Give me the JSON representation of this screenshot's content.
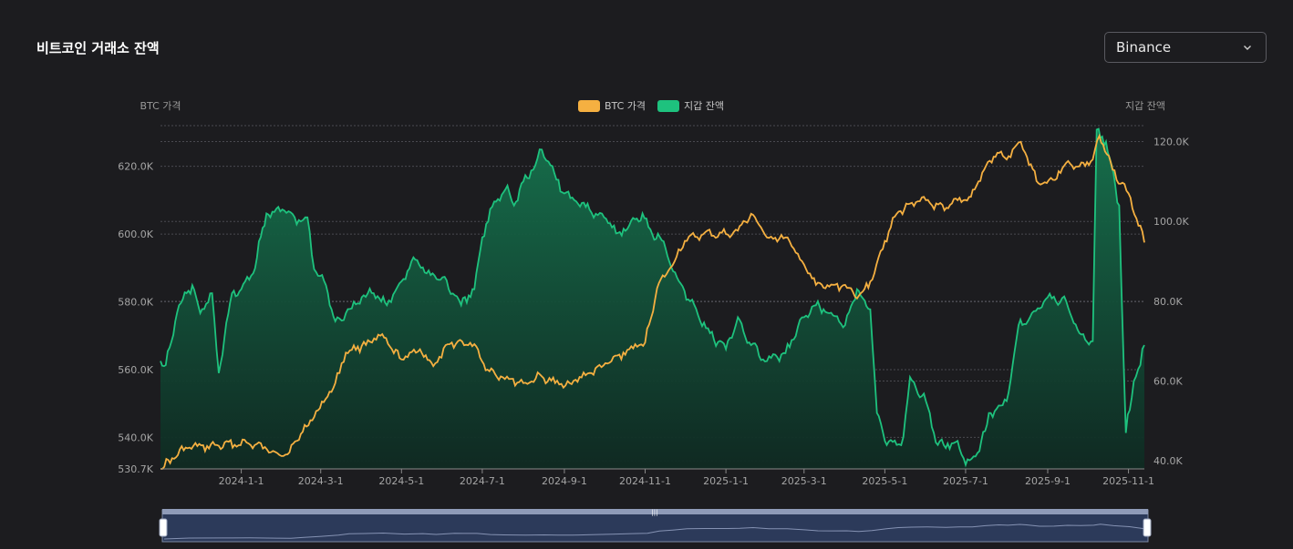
{
  "page": {
    "title": "비트코인 거래소 잔액"
  },
  "exchange_select": {
    "value": "Binance"
  },
  "colors": {
    "background": "#1c1c1f",
    "price_line": "#f5b041",
    "balance_line": "#1ec27e",
    "balance_fill_top": "#16734e",
    "balance_fill_bottom": "#0f2a22",
    "grid": "#4a4a50",
    "zoom_fill": "#2f3e5e"
  },
  "chart_data": {
    "type": "line",
    "left_axis_label": "BTC 가격",
    "right_axis_label": "지갑 잔액",
    "legend": [
      "BTC 가격",
      "지갑 잔액"
    ],
    "legend_position": "top-center",
    "grid": true,
    "x_range": [
      "2023-11-01",
      "2025-11-13"
    ],
    "x_ticks": [
      "2024-1-1",
      "2024-3-1",
      "2024-5-1",
      "2024-7-1",
      "2024-9-1",
      "2024-11-1",
      "2025-1-1",
      "2025-3-1",
      "2025-5-1",
      "2025-7-1",
      "2025-9-1",
      "2025-11-1"
    ],
    "y_left_range": [
      530.7,
      632
    ],
    "y_left_ticks": [
      "530.7K",
      "540.0K",
      "560.0K",
      "580.0K",
      "600.0K",
      "620.0K"
    ],
    "y_left_tick_values": [
      530.7,
      540,
      560,
      580,
      600,
      620
    ],
    "y_right_range": [
      38,
      124
    ],
    "y_right_ticks": [
      "40.0K",
      "60.0K",
      "80.0K",
      "100.0K",
      "120.0K"
    ],
    "y_right_tick_values": [
      40,
      60,
      80,
      100,
      120
    ],
    "series": [
      {
        "name": "BTC 가격",
        "axis": "left",
        "points": [
          [
            "2023-11-01",
            530.7
          ],
          [
            "2023-11-20",
            537
          ],
          [
            "2023-12-15",
            537.5
          ],
          [
            "2024-01-05",
            538.5
          ],
          [
            "2024-01-25",
            536
          ],
          [
            "2024-02-05",
            535
          ],
          [
            "2024-02-15",
            541
          ],
          [
            "2024-02-28",
            548
          ],
          [
            "2024-03-12",
            556
          ],
          [
            "2024-03-20",
            565
          ],
          [
            "2024-04-01",
            567
          ],
          [
            "2024-04-15",
            570
          ],
          [
            "2024-05-01",
            563
          ],
          [
            "2024-05-15",
            566
          ],
          [
            "2024-05-25",
            561
          ],
          [
            "2024-06-08",
            568
          ],
          [
            "2024-06-25",
            567.5
          ],
          [
            "2024-07-05",
            560
          ],
          [
            "2024-07-15",
            558
          ],
          [
            "2024-08-01",
            556
          ],
          [
            "2024-08-15",
            558
          ],
          [
            "2024-08-25",
            556
          ],
          [
            "2024-09-05",
            556
          ],
          [
            "2024-09-20",
            559
          ],
          [
            "2024-10-05",
            562
          ],
          [
            "2024-10-20",
            566
          ],
          [
            "2024-11-01",
            568
          ],
          [
            "2024-11-10",
            584
          ],
          [
            "2024-11-20",
            590
          ],
          [
            "2024-12-01",
            598
          ],
          [
            "2024-12-15",
            600
          ],
          [
            "2025-01-01",
            600
          ],
          [
            "2025-01-10",
            601
          ],
          [
            "2025-01-20",
            606
          ],
          [
            "2025-02-01",
            599
          ],
          [
            "2025-02-15",
            599
          ],
          [
            "2025-03-01",
            591
          ],
          [
            "2025-03-10",
            585
          ],
          [
            "2025-03-20",
            584.5
          ],
          [
            "2025-04-01",
            585
          ],
          [
            "2025-04-10",
            581
          ],
          [
            "2025-04-20",
            586
          ],
          [
            "2025-05-01",
            598
          ],
          [
            "2025-05-10",
            606
          ],
          [
            "2025-05-20",
            609
          ],
          [
            "2025-06-01",
            610
          ],
          [
            "2025-06-15",
            607
          ],
          [
            "2025-06-25",
            610
          ],
          [
            "2025-07-05",
            611
          ],
          [
            "2025-07-15",
            619
          ],
          [
            "2025-07-25",
            624
          ],
          [
            "2025-08-01",
            622
          ],
          [
            "2025-08-10",
            627
          ],
          [
            "2025-08-15",
            624
          ],
          [
            "2025-08-25",
            615
          ],
          [
            "2025-09-05",
            616
          ],
          [
            "2025-09-15",
            621
          ],
          [
            "2025-09-25",
            620
          ],
          [
            "2025-10-05",
            622
          ],
          [
            "2025-10-10",
            629
          ],
          [
            "2025-10-20",
            619
          ],
          [
            "2025-11-01",
            612
          ],
          [
            "2025-11-13",
            597.5
          ]
        ]
      },
      {
        "name": "지갑 잔액",
        "axis": "right",
        "points": [
          [
            "2023-11-01",
            65
          ],
          [
            "2023-11-05",
            64
          ],
          [
            "2023-11-15",
            79
          ],
          [
            "2023-11-25",
            84
          ],
          [
            "2023-12-01",
            77
          ],
          [
            "2023-12-10",
            82
          ],
          [
            "2023-12-15",
            62
          ],
          [
            "2023-12-25",
            82
          ],
          [
            "2024-01-01",
            83
          ],
          [
            "2024-01-10",
            87
          ],
          [
            "2024-01-20",
            102
          ],
          [
            "2024-02-01",
            103
          ],
          [
            "2024-02-15",
            100
          ],
          [
            "2024-02-20",
            101
          ],
          [
            "2024-02-25",
            88
          ],
          [
            "2024-03-05",
            84
          ],
          [
            "2024-03-12",
            75
          ],
          [
            "2024-03-20",
            77
          ],
          [
            "2024-04-01",
            81
          ],
          [
            "2024-04-10",
            82
          ],
          [
            "2024-04-20",
            79
          ],
          [
            "2024-05-01",
            85
          ],
          [
            "2024-05-10",
            91
          ],
          [
            "2024-05-20",
            87
          ],
          [
            "2024-06-01",
            86
          ],
          [
            "2024-06-15",
            79
          ],
          [
            "2024-06-25",
            83
          ],
          [
            "2024-07-01",
            96
          ],
          [
            "2024-07-10",
            105
          ],
          [
            "2024-07-20",
            109
          ],
          [
            "2024-07-25",
            104
          ],
          [
            "2024-08-01",
            110
          ],
          [
            "2024-08-10",
            114
          ],
          [
            "2024-08-15",
            118
          ],
          [
            "2024-08-20",
            115
          ],
          [
            "2024-09-01",
            107
          ],
          [
            "2024-09-10",
            105
          ],
          [
            "2024-09-20",
            103
          ],
          [
            "2024-10-01",
            101
          ],
          [
            "2024-10-10",
            97
          ],
          [
            "2024-10-20",
            99
          ],
          [
            "2024-10-30",
            102
          ],
          [
            "2024-11-05",
            98
          ],
          [
            "2024-11-15",
            95
          ],
          [
            "2024-11-25",
            86
          ],
          [
            "2024-12-05",
            80
          ],
          [
            "2024-12-20",
            72
          ],
          [
            "2025-01-01",
            68
          ],
          [
            "2025-01-10",
            76
          ],
          [
            "2025-01-20",
            69
          ],
          [
            "2025-02-01",
            65
          ],
          [
            "2025-02-15",
            67
          ],
          [
            "2025-03-01",
            76
          ],
          [
            "2025-03-10",
            79
          ],
          [
            "2025-03-20",
            77
          ],
          [
            "2025-04-01",
            74
          ],
          [
            "2025-04-10",
            83
          ],
          [
            "2025-04-20",
            78
          ],
          [
            "2025-04-25",
            52
          ],
          [
            "2025-05-01",
            45
          ],
          [
            "2025-05-10",
            44
          ],
          [
            "2025-05-15",
            46
          ],
          [
            "2025-05-20",
            61
          ],
          [
            "2025-06-01",
            55
          ],
          [
            "2025-06-10",
            44
          ],
          [
            "2025-06-25",
            45
          ],
          [
            "2025-07-01",
            39
          ],
          [
            "2025-07-10",
            42
          ],
          [
            "2025-07-20",
            52
          ],
          [
            "2025-08-01",
            55
          ],
          [
            "2025-08-10",
            74
          ],
          [
            "2025-08-20",
            77
          ],
          [
            "2025-09-01",
            81
          ],
          [
            "2025-09-15",
            80
          ],
          [
            "2025-09-25",
            72
          ],
          [
            "2025-10-05",
            70
          ],
          [
            "2025-10-08",
            123
          ],
          [
            "2025-10-15",
            120
          ],
          [
            "2025-10-25",
            104
          ],
          [
            "2025-10-30",
            47
          ],
          [
            "2025-11-05",
            60
          ],
          [
            "2025-11-10",
            64
          ],
          [
            "2025-11-13",
            69
          ]
        ]
      }
    ]
  }
}
